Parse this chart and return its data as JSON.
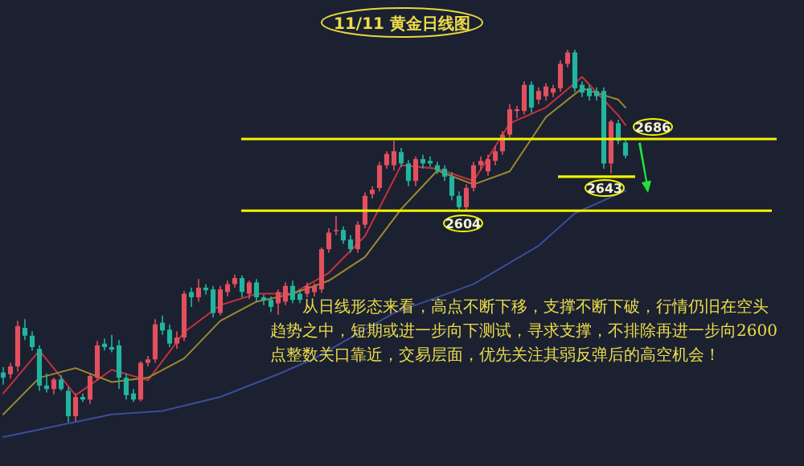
{
  "chart_data": {
    "type": "candlestick",
    "title": "11/11 黄金日线图",
    "categories": [
      null,
      null,
      null,
      null,
      null,
      null,
      null,
      null,
      null,
      null,
      null,
      null,
      null,
      null,
      null,
      null,
      null,
      null,
      null,
      null,
      null,
      null,
      null,
      null,
      null,
      null,
      null,
      null,
      null,
      null,
      null,
      null,
      null,
      null,
      null,
      null,
      null,
      null,
      null,
      null,
      null,
      null,
      null,
      null,
      null,
      null,
      null,
      null,
      null,
      null,
      null,
      null,
      null,
      null,
      null,
      null,
      null,
      null,
      null,
      null,
      null,
      null,
      null,
      null,
      null,
      null,
      null,
      null,
      null,
      null,
      null,
      null,
      null,
      null,
      null,
      null,
      null,
      null,
      null,
      null,
      null,
      null,
      null,
      null,
      null,
      null,
      null
    ],
    "ohlc": [
      [
        2419,
        2425,
        2405,
        2413
      ],
      [
        2417,
        2430,
        2412,
        2426
      ],
      [
        2426,
        2478,
        2420,
        2472
      ],
      [
        2470,
        2480,
        2456,
        2461
      ],
      [
        2461,
        2466,
        2444,
        2448
      ],
      [
        2446,
        2450,
        2398,
        2404
      ],
      [
        2404,
        2418,
        2396,
        2400
      ],
      [
        2400,
        2413,
        2394,
        2411
      ],
      [
        2411,
        2416,
        2398,
        2400
      ],
      [
        2398,
        2402,
        2362,
        2369
      ],
      [
        2369,
        2395,
        2363,
        2391
      ],
      [
        2391,
        2395,
        2385,
        2388
      ],
      [
        2388,
        2418,
        2383,
        2415
      ],
      [
        2413,
        2455,
        2410,
        2450
      ],
      [
        2452,
        2458,
        2444,
        2448
      ],
      [
        2448,
        2462,
        2442,
        2445
      ],
      [
        2450,
        2456,
        2400,
        2413
      ],
      [
        2413,
        2418,
        2388,
        2393
      ],
      [
        2395,
        2400,
        2385,
        2388
      ],
      [
        2388,
        2432,
        2386,
        2430
      ],
      [
        2430,
        2438,
        2426,
        2434
      ],
      [
        2434,
        2480,
        2430,
        2474
      ],
      [
        2476,
        2484,
        2462,
        2467
      ],
      [
        2468,
        2474,
        2448,
        2452
      ],
      [
        2452,
        2466,
        2446,
        2459
      ],
      [
        2459,
        2512,
        2455,
        2509
      ],
      [
        2511,
        2516,
        2494,
        2505
      ],
      [
        2505,
        2526,
        2500,
        2516
      ],
      [
        2516,
        2520,
        2508,
        2513
      ],
      [
        2514,
        2518,
        2482,
        2487
      ],
      [
        2487,
        2518,
        2484,
        2514
      ],
      [
        2511,
        2524,
        2506,
        2520
      ],
      [
        2520,
        2531,
        2516,
        2527
      ],
      [
        2527,
        2530,
        2505,
        2511
      ],
      [
        2509,
        2524,
        2503,
        2522
      ],
      [
        2522,
        2526,
        2500,
        2505
      ],
      [
        2505,
        2508,
        2496,
        2502
      ],
      [
        2502,
        2506,
        2488,
        2494
      ],
      [
        2498,
        2514,
        2485,
        2511
      ],
      [
        2500,
        2522,
        2496,
        2518
      ],
      [
        2518,
        2524,
        2498,
        2502
      ],
      [
        2509,
        2514,
        2498,
        2502
      ],
      [
        2509,
        2522,
        2505,
        2518
      ],
      [
        2511,
        2521,
        2506,
        2518
      ],
      [
        2514,
        2562,
        2510,
        2560
      ],
      [
        2560,
        2584,
        2556,
        2579
      ],
      [
        2581,
        2598,
        2576,
        2582
      ],
      [
        2582,
        2586,
        2566,
        2570
      ],
      [
        2571,
        2576,
        2556,
        2560
      ],
      [
        2560,
        2592,
        2556,
        2588
      ],
      [
        2588,
        2625,
        2584,
        2621
      ],
      [
        2623,
        2632,
        2618,
        2628
      ],
      [
        2630,
        2660,
        2626,
        2656
      ],
      [
        2656,
        2672,
        2652,
        2669
      ],
      [
        2656,
        2684,
        2650,
        2672
      ],
      [
        2671,
        2676,
        2654,
        2658
      ],
      [
        2658,
        2662,
        2632,
        2638
      ],
      [
        2638,
        2666,
        2632,
        2663
      ],
      [
        2663,
        2668,
        2652,
        2658
      ],
      [
        2661,
        2666,
        2654,
        2658
      ],
      [
        2656,
        2660,
        2646,
        2650
      ],
      [
        2652,
        2656,
        2638,
        2643
      ],
      [
        2643,
        2648,
        2616,
        2621
      ],
      [
        2621,
        2626,
        2604,
        2608
      ],
      [
        2608,
        2634,
        2604,
        2630
      ],
      [
        2630,
        2660,
        2626,
        2656
      ],
      [
        2656,
        2666,
        2650,
        2661
      ],
      [
        2649,
        2668,
        2644,
        2663
      ],
      [
        2661,
        2678,
        2656,
        2672
      ],
      [
        2672,
        2695,
        2668,
        2691
      ],
      [
        2691,
        2726,
        2688,
        2720
      ],
      [
        2718,
        2724,
        2710,
        2720
      ],
      [
        2718,
        2752,
        2714,
        2748
      ],
      [
        2748,
        2752,
        2716,
        2722
      ],
      [
        2731,
        2745,
        2726,
        2741
      ],
      [
        2735,
        2750,
        2730,
        2746
      ],
      [
        2739,
        2748,
        2734,
        2744
      ],
      [
        2744,
        2776,
        2740,
        2772
      ],
      [
        2772,
        2788,
        2768,
        2785
      ],
      [
        2785,
        2788,
        2740,
        2744
      ],
      [
        2748,
        2752,
        2734,
        2739
      ],
      [
        2744,
        2748,
        2730,
        2735
      ],
      [
        2741,
        2745,
        2730,
        2735
      ],
      [
        2741,
        2745,
        2652,
        2658
      ],
      [
        2658,
        2708,
        2647,
        2706
      ],
      [
        2704,
        2708,
        2680,
        2684
      ],
      [
        2682,
        2686,
        2664,
        2667
      ]
    ],
    "colors": [
      "#22b59e",
      "#e2505e",
      "#e2505e",
      "#22b59e",
      "#22b59e",
      "#22b59e",
      "#22b59e",
      "#e2505e",
      "#22b59e",
      "#22b59e",
      "#e2505e",
      "#22b59e",
      "#e2505e",
      "#e2505e",
      "#22b59e",
      "#22b59e",
      "#22b59e",
      "#22b59e",
      "#22b59e",
      "#e2505e",
      "#e2505e",
      "#e2505e",
      "#22b59e",
      "#22b59e",
      "#e2505e",
      "#e2505e",
      "#22b59e",
      "#e2505e",
      "#22b59e",
      "#22b59e",
      "#e2505e",
      "#e2505e",
      "#e2505e",
      "#22b59e",
      "#e2505e",
      "#22b59e",
      "#22b59e",
      "#22b59e",
      "#e2505e",
      "#e2505e",
      "#22b59e",
      "#22b59e",
      "#e2505e",
      "#e2505e",
      "#e2505e",
      "#e2505e",
      "#e2505e",
      "#22b59e",
      "#22b59e",
      "#e2505e",
      "#e2505e",
      "#e2505e",
      "#e2505e",
      "#e2505e",
      "#e2505e",
      "#22b59e",
      "#22b59e",
      "#e2505e",
      "#22b59e",
      "#22b59e",
      "#22b59e",
      "#22b59e",
      "#22b59e",
      "#22b59e",
      "#e2505e",
      "#e2505e",
      "#e2505e",
      "#e2505e",
      "#e2505e",
      "#e2505e",
      "#e2505e",
      "#e2505e",
      "#e2505e",
      "#22b59e",
      "#e2505e",
      "#e2505e",
      "#e2505e",
      "#e2505e",
      "#e2505e",
      "#22b59e",
      "#22b59e",
      "#22b59e",
      "#22b59e",
      "#22b59e",
      "#e2505e",
      "#22b59e",
      "#22b59e"
    ],
    "series": [
      {
        "type": "line",
        "color": "#c8303e",
        "values": [
          2395,
          null,
          null,
          null,
          null,
          2444,
          null,
          null,
          null,
          null,
          2393,
          null,
          null,
          null,
          null,
          2422,
          null,
          null,
          null,
          null,
          2410,
          null,
          null,
          null,
          null,
          2465,
          null,
          null,
          null,
          null,
          2496,
          null,
          null,
          null,
          null,
          2509,
          null,
          null,
          null,
          null,
          2509,
          null,
          null,
          null,
          null,
          2533,
          null,
          null,
          null,
          null,
          2575,
          null,
          null,
          null,
          null,
          2656,
          null,
          null,
          null,
          null,
          2652,
          null,
          null,
          null,
          null,
          2638,
          null,
          null,
          null,
          null,
          2704,
          null,
          null,
          null,
          null,
          2722,
          null,
          null,
          null,
          null,
          2757,
          null,
          null,
          null,
          null,
          2713,
          2702
        ]
      },
      {
        "type": "line",
        "color": "#9c8a2e",
        "values": [
          2371,
          null,
          null,
          null,
          null,
          2413,
          null,
          null,
          null,
          null,
          2424,
          null,
          null,
          null,
          null,
          2408,
          null,
          null,
          null,
          null,
          2413,
          null,
          null,
          null,
          null,
          2435,
          null,
          null,
          null,
          null,
          2478,
          null,
          null,
          null,
          null,
          2500,
          null,
          null,
          null,
          null,
          2509,
          null,
          null,
          null,
          null,
          2524,
          null,
          null,
          null,
          null,
          2551,
          null,
          null,
          null,
          null,
          2606,
          null,
          null,
          null,
          null,
          2650,
          null,
          null,
          null,
          null,
          2634,
          null,
          null,
          null,
          null,
          2649,
          null,
          null,
          null,
          null,
          2711,
          null,
          null,
          null,
          null,
          2744,
          null,
          null,
          null,
          null,
          2731,
          2722
        ]
      },
      {
        "type": "line",
        "color": "#3c4c9c",
        "values": [
          2345,
          null,
          null,
          null,
          null,
          null,
          null,
          null,
          null,
          null,
          null,
          null,
          null,
          null,
          null,
          2371,
          null,
          null,
          null,
          null,
          null,
          null,
          2375,
          null,
          null,
          null,
          null,
          null,
          null,
          null,
          2391,
          null,
          null,
          null,
          null,
          null,
          null,
          null,
          2417,
          null,
          null,
          null,
          null,
          2435,
          null,
          null,
          null,
          null,
          null,
          null,
          null,
          null,
          null,
          null,
          2487,
          null,
          null,
          null,
          null,
          null,
          null,
          null,
          null,
          null,
          null,
          2520,
          null,
          null,
          null,
          null,
          null,
          null,
          null,
          null,
          2564,
          null,
          null,
          null,
          null,
          2601,
          null,
          null,
          null,
          null,
          null,
          null,
          2627
        ]
      }
    ],
    "ylim": [
      2312,
      2845
    ],
    "ref_lines": [
      {
        "axis": "y",
        "value": 2686,
        "label": "2686",
        "color": "#f4f400"
      },
      {
        "axis": "y",
        "value": 2643,
        "label": "2643",
        "color": "#f4f400"
      },
      {
        "axis": "y",
        "value": 2604,
        "label": "2604",
        "color": "#f4f400"
      }
    ],
    "annotations": [
      "从日线形态来看，高点不断下移，支撑不断下破，行情仍旧在空头趋势之中，短期或进一步向下测试，寻求支撑，不排除再进一步向2600点整数关口靠近，交易层面，优先关注其弱反弹后的高空机会！"
    ]
  }
}
